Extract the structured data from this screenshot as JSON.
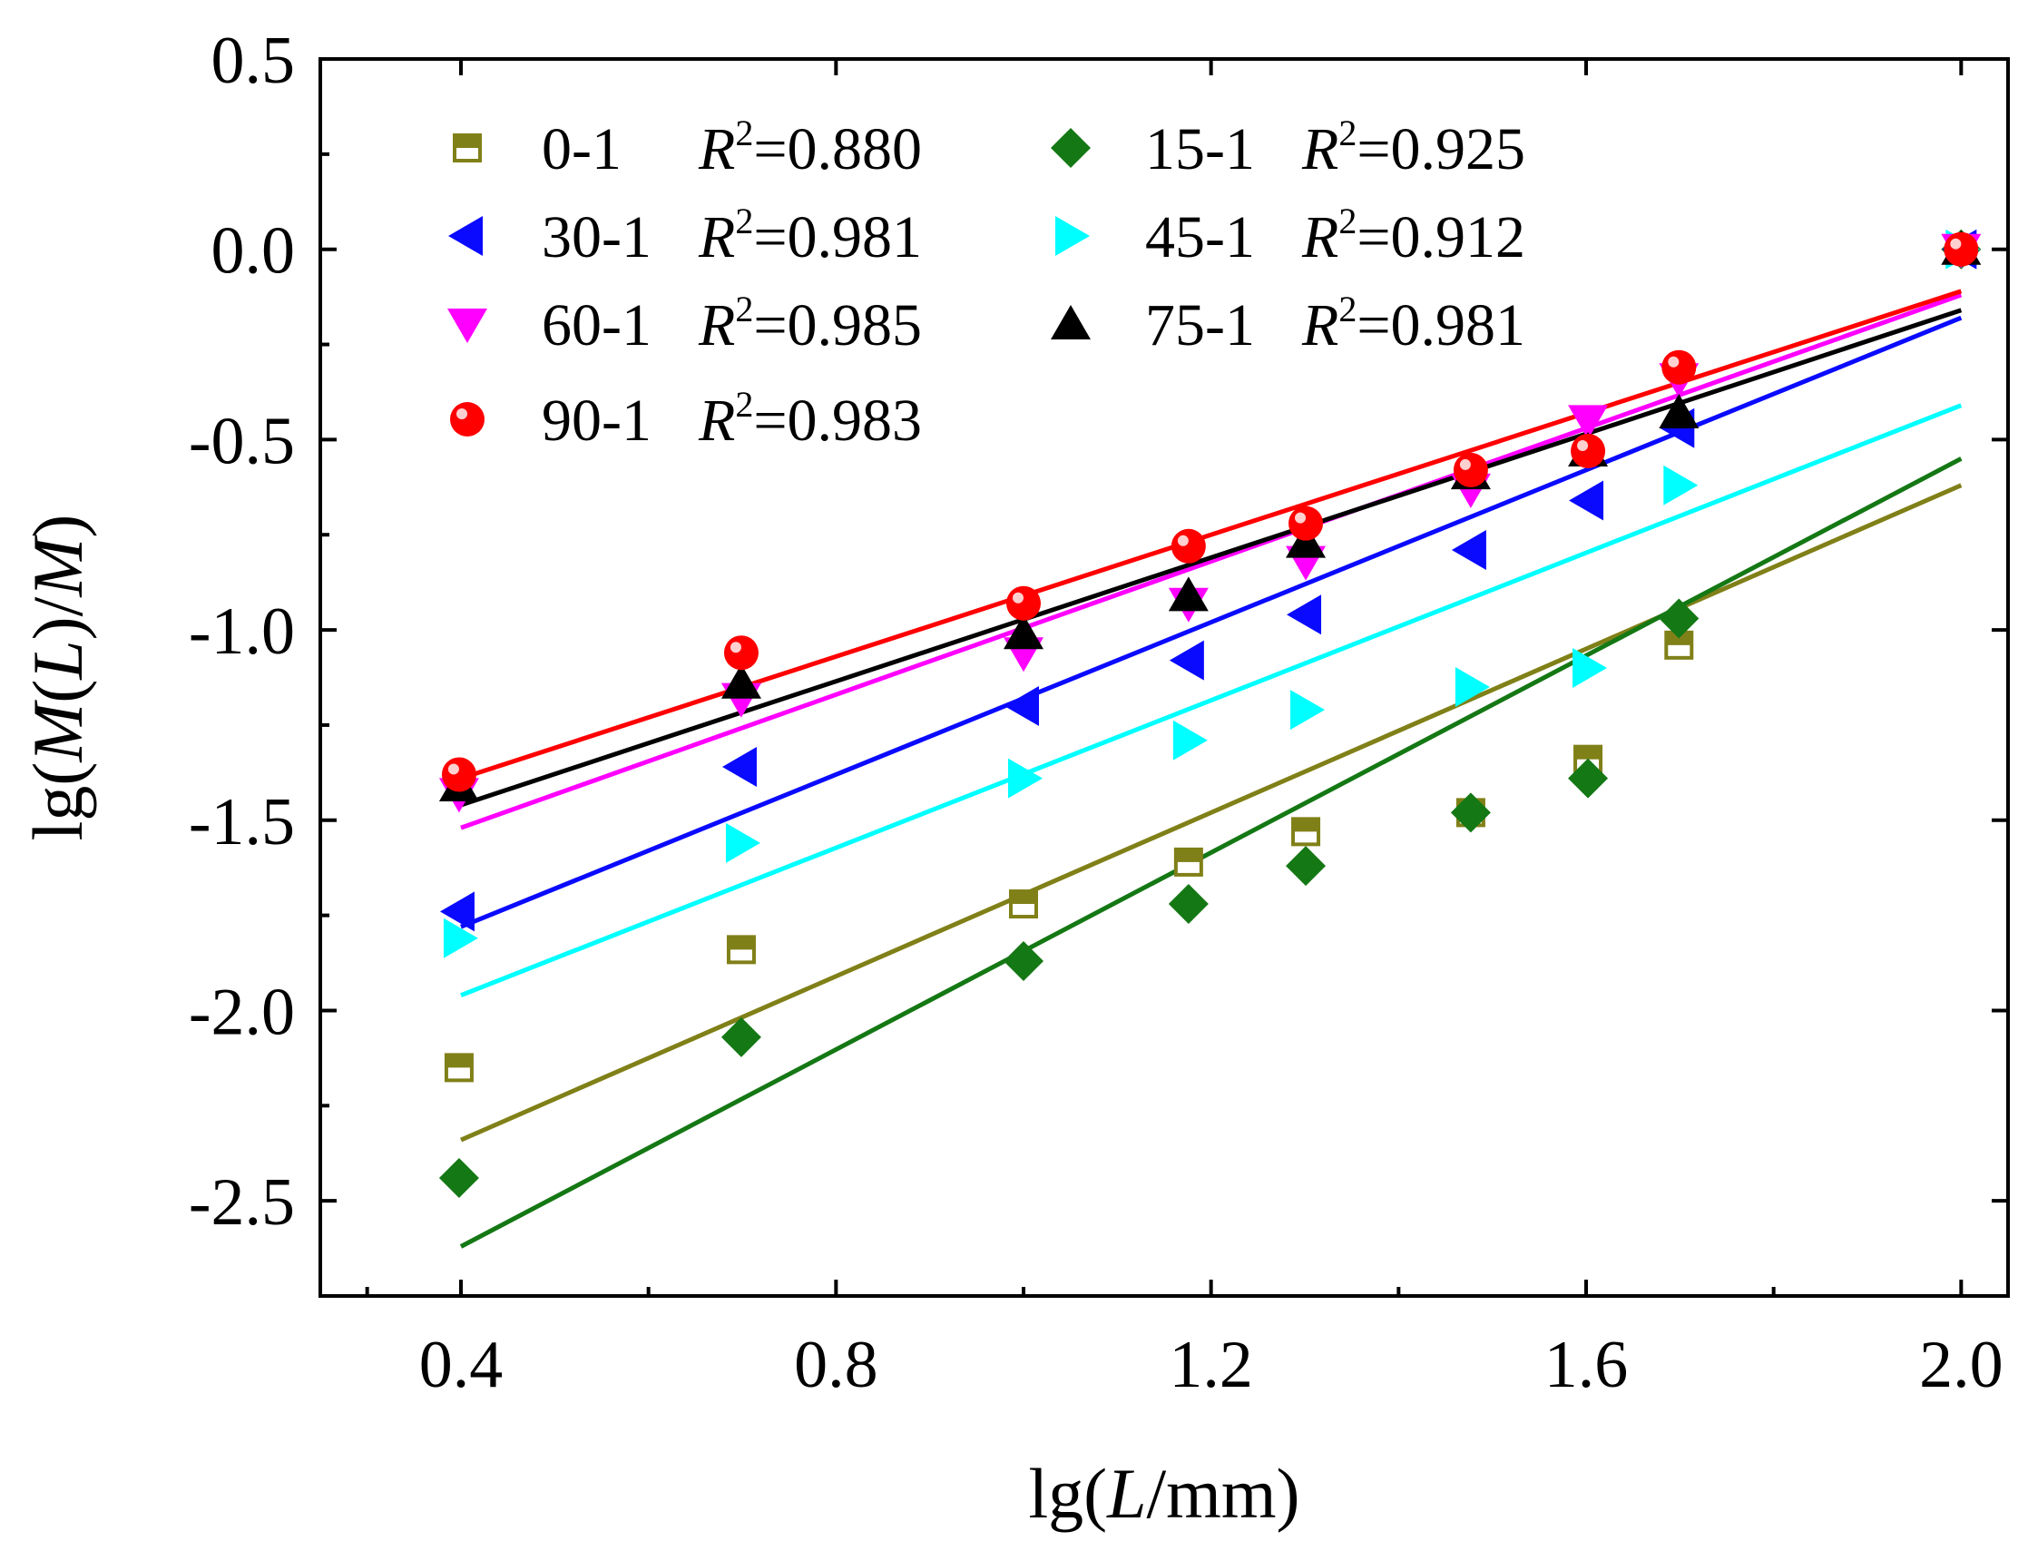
{
  "chart_data": {
    "type": "scatter",
    "xlabel_parts": [
      "lg(",
      "L",
      "/mm)"
    ],
    "ylabel_parts": [
      "lg(",
      "M",
      "(",
      "L",
      ")/",
      "M",
      ")"
    ],
    "xlim": [
      0.25,
      2.05
    ],
    "ylim": [
      -2.75,
      0.5
    ],
    "x_ticks": [
      0.4,
      0.8,
      1.2,
      1.6,
      2.0
    ],
    "x_tick_labels": [
      "0.4",
      "0.8",
      "1.2",
      "1.6",
      "2.0"
    ],
    "y_ticks": [
      0.5,
      0.0,
      -0.5,
      -1.0,
      -1.5,
      -2.0,
      -2.5
    ],
    "y_tick_labels": [
      "0.5",
      "0.0",
      "-0.5",
      "-1.0",
      "-1.5",
      "-2.0",
      "-2.5"
    ],
    "grid": false,
    "legend_position": "top-left",
    "r2_symbol": "R",
    "r2_exponent": "2",
    "x": [
      0.398,
      0.699,
      1.0,
      1.176,
      1.301,
      1.477,
      1.602,
      1.699,
      2.0
    ],
    "series": [
      {
        "name": "0-1",
        "r2": "=0.880",
        "color": "#808018",
        "marker": "half-square",
        "values": [
          -2.15,
          -1.84,
          -1.72,
          -1.61,
          -1.53,
          -1.48,
          -1.34,
          -1.04,
          0.0
        ],
        "fit": [
          [
            0.4,
            -2.34
          ],
          [
            2.0,
            -0.62
          ]
        ]
      },
      {
        "name": "15-1",
        "r2": "=0.925",
        "color": "#147814",
        "marker": "diamond",
        "values": [
          -2.44,
          -2.07,
          -1.87,
          -1.72,
          -1.62,
          -1.48,
          -1.39,
          -0.97,
          0.0
        ],
        "fit": [
          [
            0.4,
            -2.62
          ],
          [
            2.0,
            -0.55
          ]
        ]
      },
      {
        "name": "30-1",
        "r2": "=0.981",
        "color": "#0a0aff",
        "marker": "triangle-left",
        "values": [
          -1.74,
          -1.36,
          -1.2,
          -1.08,
          -0.96,
          -0.79,
          -0.66,
          -0.47,
          0.0
        ],
        "fit": [
          [
            0.4,
            -1.78
          ],
          [
            2.0,
            -0.18
          ]
        ]
      },
      {
        "name": "45-1",
        "r2": "=0.912",
        "color": "#00ffff",
        "marker": "triangle-right",
        "values": [
          -1.81,
          -1.56,
          -1.39,
          -1.29,
          -1.21,
          -1.15,
          -1.1,
          -0.62,
          0.0
        ],
        "fit": [
          [
            0.4,
            -1.96
          ],
          [
            2.0,
            -0.41
          ]
        ]
      },
      {
        "name": "60-1",
        "r2": "=0.985",
        "color": "#ff00ff",
        "marker": "triangle-down",
        "values": [
          -1.43,
          -1.18,
          -1.06,
          -0.93,
          -0.82,
          -0.63,
          -0.45,
          -0.34,
          0.0
        ],
        "fit": [
          [
            0.4,
            -1.52
          ],
          [
            2.0,
            -0.12
          ]
        ]
      },
      {
        "name": "75-1",
        "r2": "=0.981",
        "color": "#000000",
        "marker": "triangle-up",
        "values": [
          -1.41,
          -1.14,
          -1.01,
          -0.91,
          -0.77,
          -0.59,
          -0.53,
          -0.43,
          0.0
        ],
        "fit": [
          [
            0.4,
            -1.46
          ],
          [
            2.0,
            -0.16
          ]
        ]
      },
      {
        "name": "90-1",
        "r2": "=0.983",
        "color": "#ff0000",
        "marker": "circle",
        "values": [
          -1.38,
          -1.06,
          -0.93,
          -0.78,
          -0.72,
          -0.58,
          -0.53,
          -0.31,
          0.0
        ],
        "fit": [
          [
            0.4,
            -1.39
          ],
          [
            2.0,
            -0.11
          ]
        ]
      }
    ],
    "legend_order": [
      0,
      1,
      2,
      3,
      4,
      5,
      6
    ]
  }
}
